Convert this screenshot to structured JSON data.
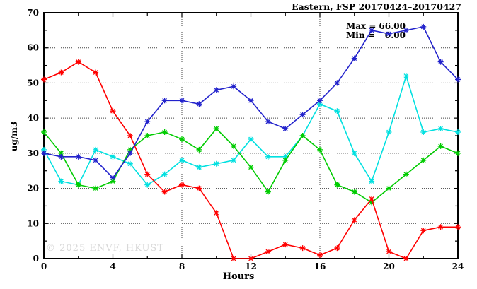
{
  "header": {
    "title": "Eastern, FSP 20170424–20170427"
  },
  "legend": {
    "max_label": "Max =",
    "max_value": "66.00",
    "min_label": "Min =",
    "min_value": "0.00"
  },
  "watermark": "© 2025 ENVF, HKUST",
  "colors": {
    "red": "#ff0000",
    "blue": "#2222cc",
    "cyan": "#00e0e0",
    "green": "#00cc00",
    "grid": "#444444",
    "axis": "#000000",
    "watermark": "#d8d8d8"
  },
  "chart_data": {
    "type": "line",
    "title": "Eastern, FSP 20170424–20170427",
    "xlabel": "Hours",
    "ylabel": "ug/m3",
    "xlim": [
      0,
      24
    ],
    "ylim": [
      0,
      70
    ],
    "grid": true,
    "x_major_ticks": [
      0,
      4,
      8,
      12,
      16,
      20,
      24
    ],
    "x_minor_step": 2,
    "y_major_ticks": [
      0,
      10,
      20,
      30,
      40,
      50,
      60,
      70
    ],
    "y_minor_step": 5,
    "x_gridlines": [
      4,
      8,
      12,
      16,
      20
    ],
    "y_gridlines": [
      10,
      20,
      30,
      40,
      50,
      60
    ],
    "x": [
      0,
      1,
      2,
      3,
      4,
      5,
      6,
      7,
      8,
      9,
      10,
      11,
      12,
      13,
      14,
      15,
      16,
      17,
      18,
      19,
      20,
      21,
      22,
      23,
      24
    ],
    "series": [
      {
        "name": "series-cyan",
        "color": "#00e0e0",
        "values": [
          31,
          22,
          21,
          31,
          29,
          27,
          21,
          24,
          28,
          26,
          27,
          28,
          34,
          29,
          29,
          35,
          44,
          42,
          30,
          22,
          36,
          52,
          36,
          37,
          36
        ]
      },
      {
        "name": "series-green",
        "color": "#00cc00",
        "values": [
          36,
          30,
          21,
          20,
          22,
          31,
          35,
          36,
          34,
          31,
          37,
          32,
          26,
          19,
          28,
          35,
          31,
          21,
          19,
          16,
          20,
          24,
          28,
          32,
          30
        ]
      },
      {
        "name": "series-red",
        "color": "#ff0000",
        "values": [
          51,
          53,
          56,
          53,
          42,
          35,
          24,
          19,
          21,
          20,
          13,
          0,
          0,
          2,
          4,
          3,
          1,
          3,
          11,
          17,
          2,
          0,
          8,
          9,
          9
        ]
      },
      {
        "name": "series-blue",
        "color": "#2222cc",
        "values": [
          30,
          29,
          29,
          28,
          23,
          30,
          39,
          45,
          45,
          44,
          48,
          49,
          45,
          39,
          37,
          41,
          45,
          50,
          57,
          65,
          64,
          65,
          66,
          56,
          51
        ]
      }
    ],
    "stats": {
      "max": 66.0,
      "min": 0.0
    },
    "legend_position": "top-right-inside"
  }
}
